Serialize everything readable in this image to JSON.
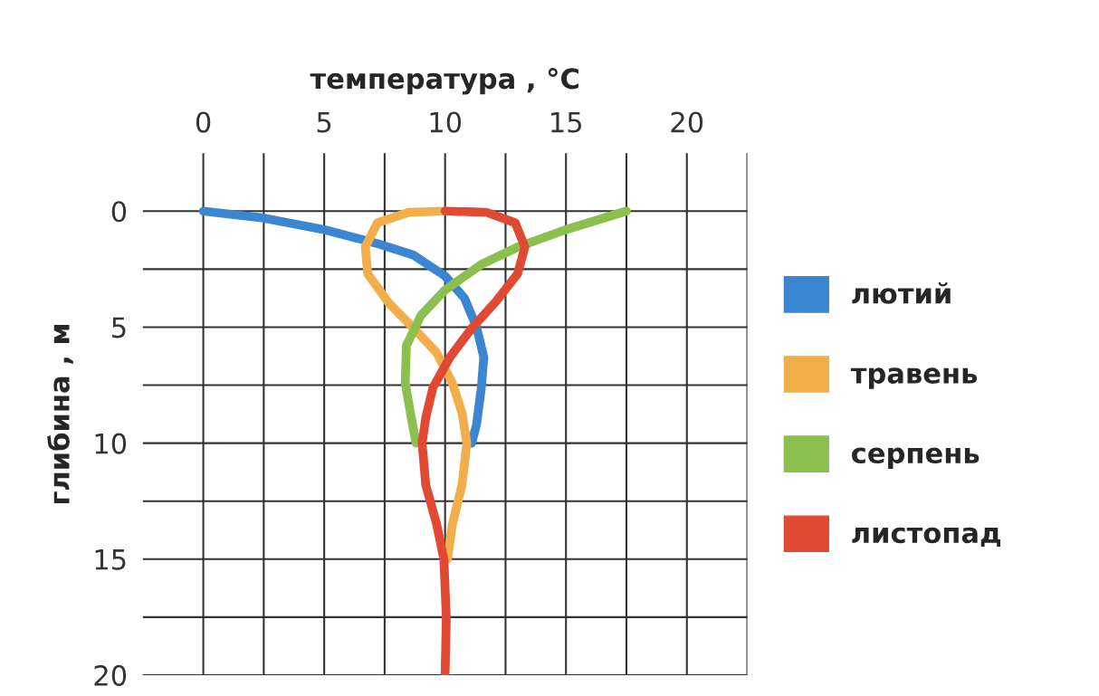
{
  "chart_data": {
    "type": "line",
    "xlabel": "температура , °C",
    "ylabel": "глибина , м",
    "xlim": [
      -2.5,
      22.5
    ],
    "ylim": [
      20,
      -2.5
    ],
    "xticks": [
      0,
      {
        "value": 2.5,
        "label": null
      },
      5,
      {
        "value": 7.5,
        "label": null
      },
      10,
      {
        "value": 12.5,
        "label": null
      },
      15,
      {
        "value": 17.5,
        "label": null
      },
      20,
      {
        "value": 22.5,
        "label": null
      }
    ],
    "yticks": [
      0,
      {
        "value": 2.5,
        "label": null
      },
      5,
      {
        "value": 7.5,
        "label": null
      },
      10,
      {
        "value": 12.5,
        "label": null
      },
      15,
      {
        "value": 17.5,
        "label": null
      },
      20
    ],
    "grid": true,
    "legend": "right",
    "marker": "none",
    "line_style": "solid",
    "series": [
      {
        "name": "лютий",
        "color": "#3a86d0",
        "x": [
          0,
          2.5,
          5,
          7.2,
          8.7,
          10,
          10.8,
          11.3,
          11.6,
          11.5,
          11.3,
          11.1
        ],
        "values": [
          0,
          0.3,
          0.8,
          1.4,
          1.9,
          2.8,
          3.75,
          5.0,
          6.3,
          7.6,
          9.2,
          10
        ]
      },
      {
        "name": "травень",
        "color": "#f2ae4a",
        "x": [
          10,
          8.5,
          7.2,
          6.7,
          6.8,
          7.7,
          8.7,
          9.65,
          10.3,
          10.7,
          10.9,
          10.7,
          10.3,
          10.1
        ],
        "values": [
          0,
          0.05,
          0.5,
          1.55,
          2.7,
          4.0,
          5.05,
          6.1,
          7.4,
          8.7,
          10.0,
          11.8,
          13.5,
          15.0
        ]
      },
      {
        "name": "серпень",
        "color": "#8bc04f",
        "x": [
          17.5,
          15,
          13,
          11.5,
          10,
          9.0,
          8.4,
          8.35,
          8.6,
          8.8
        ],
        "values": [
          0,
          0.8,
          1.55,
          2.3,
          3.4,
          4.5,
          5.8,
          7.4,
          8.9,
          10
        ]
      },
      {
        "name": "листопад",
        "color": "#e04a33",
        "x": [
          10,
          11.7,
          12.9,
          13.3,
          13.0,
          12.1,
          11.1,
          10.2,
          9.5,
          9.2,
          9.05,
          9.2,
          9.65,
          9.95,
          10.05,
          10
        ],
        "values": [
          0,
          0.05,
          0.5,
          1.55,
          2.7,
          3.9,
          5.05,
          6.3,
          7.6,
          8.9,
          10,
          11.8,
          13.5,
          15.0,
          17.5,
          20
        ]
      }
    ]
  }
}
